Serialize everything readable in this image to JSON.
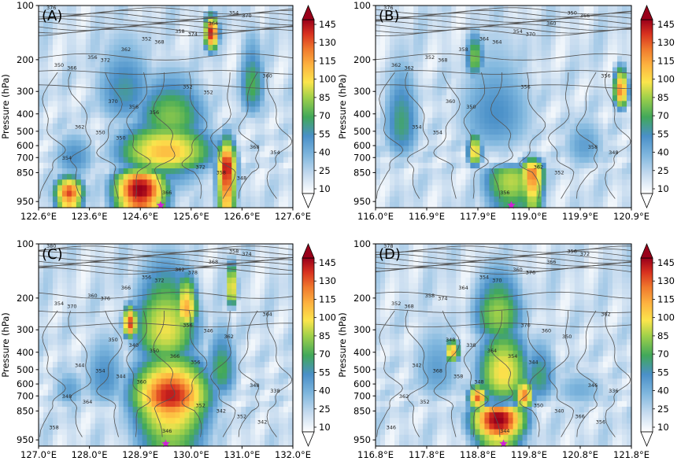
{
  "chart_data": [
    {
      "type": "heatmap",
      "panel_label": "(A)",
      "ylabel": "Pressure (hPa)",
      "y_ticks": [
        "100",
        "200",
        "300",
        "400",
        "500",
        "600",
        "700",
        "850",
        "950"
      ],
      "y_values": [
        100,
        200,
        300,
        400,
        500,
        600,
        700,
        850,
        950
      ],
      "x_ticks": [
        "122.6°E",
        "123.6°E",
        "124.6°E",
        "125.6°E",
        "126.6°E",
        "127.6°E"
      ],
      "xlim": [
        122.6,
        127.6
      ],
      "star_lon": 125.0,
      "colorbar_ticks": [
        "145",
        "130",
        "115",
        "100",
        "85",
        "70",
        "55",
        "40",
        "25",
        "10"
      ],
      "contour_labels": [
        "376",
        "374",
        "372",
        "370",
        "368",
        "366",
        "364",
        "362",
        "360",
        "358",
        "356",
        "354",
        "352",
        "350",
        "372",
        "370",
        "368",
        "366",
        "362",
        "358",
        "356",
        "354",
        "352",
        "350",
        "348",
        "356",
        "354",
        "352",
        "350"
      ],
      "cores": [
        {
          "lon": 125.1,
          "p": 650,
          "v": 105,
          "wx": 1.0,
          "wp": 230
        },
        {
          "lon": 124.6,
          "p": 910,
          "v": 150,
          "wx": 0.55,
          "wp": 90
        },
        {
          "lon": 126.3,
          "p": 800,
          "v": 145,
          "wx": 0.2,
          "wp": 260
        },
        {
          "lon": 125.2,
          "p": 420,
          "v": 70,
          "wx": 0.8,
          "wp": 200
        },
        {
          "lon": 126.0,
          "p": 150,
          "v": 140,
          "wx": 0.15,
          "wp": 35
        },
        {
          "lon": 124.3,
          "p": 300,
          "v": 50,
          "wx": 0.7,
          "wp": 180
        },
        {
          "lon": 123.3,
          "p": 700,
          "v": 45,
          "wx": 0.5,
          "wp": 250
        },
        {
          "lon": 126.8,
          "p": 280,
          "v": 60,
          "wx": 0.3,
          "wp": 150
        },
        {
          "lon": 123.2,
          "p": 920,
          "v": 130,
          "wx": 0.3,
          "wp": 60
        }
      ]
    },
    {
      "type": "heatmap",
      "panel_label": "(B)",
      "ylabel": "Pressure (hPa)",
      "y_ticks": [
        "100",
        "200",
        "300",
        "400",
        "500",
        "600",
        "700",
        "850",
        "950"
      ],
      "y_values": [
        100,
        200,
        300,
        400,
        500,
        600,
        700,
        850,
        950
      ],
      "x_ticks": [
        "116.0°E",
        "116.9°E",
        "117.9°E",
        "119.0°E",
        "119.9°E",
        "120.9°E"
      ],
      "xlim": [
        116.0,
        120.9
      ],
      "star_lon": 118.6,
      "colorbar_ticks": [
        "145",
        "130",
        "115",
        "100",
        "85",
        "70",
        "55",
        "40",
        "25",
        "10"
      ],
      "contour_labels": [
        "376",
        "370",
        "368",
        "366",
        "364",
        "362",
        "360",
        "358",
        "356",
        "354",
        "352",
        "350",
        "364",
        "362",
        "362",
        "360",
        "358",
        "356",
        "354",
        "352",
        "350",
        "348",
        "356",
        "354"
      ],
      "cores": [
        {
          "lon": 118.6,
          "p": 880,
          "v": 80,
          "wx": 0.6,
          "wp": 120
        },
        {
          "lon": 119.0,
          "p": 850,
          "v": 120,
          "wx": 0.25,
          "wp": 150
        },
        {
          "lon": 117.9,
          "p": 650,
          "v": 100,
          "wx": 0.15,
          "wp": 150
        },
        {
          "lon": 120.7,
          "p": 300,
          "v": 120,
          "wx": 0.15,
          "wp": 80
        },
        {
          "lon": 118.3,
          "p": 400,
          "v": 45,
          "wx": 0.9,
          "wp": 300
        },
        {
          "lon": 116.5,
          "p": 450,
          "v": 55,
          "wx": 0.4,
          "wp": 300
        },
        {
          "lon": 117.9,
          "p": 200,
          "v": 70,
          "wx": 0.2,
          "wp": 60
        },
        {
          "lon": 120.0,
          "p": 600,
          "v": 40,
          "wx": 0.5,
          "wp": 250
        }
      ]
    },
    {
      "type": "heatmap",
      "panel_label": "(C)",
      "ylabel": "Pressure (hPa)",
      "y_ticks": [
        "100",
        "200",
        "300",
        "400",
        "500",
        "600",
        "700",
        "850",
        "950"
      ],
      "y_values": [
        100,
        200,
        300,
        400,
        500,
        600,
        700,
        850,
        950
      ],
      "x_ticks": [
        "127.0°E",
        "128.0°E",
        "128.9°E",
        "130.0°E",
        "131.0°E",
        "132.0°E"
      ],
      "xlim": [
        127.0,
        132.0
      ],
      "star_lon": 129.5,
      "colorbar_ticks": [
        "145",
        "130",
        "115",
        "100",
        "85",
        "70",
        "55",
        "40",
        "25",
        "10"
      ],
      "contour_labels": [
        "380",
        "378",
        "376",
        "374",
        "372",
        "370",
        "368",
        "366",
        "364",
        "362",
        "360",
        "358",
        "356",
        "354",
        "352",
        "350",
        "348",
        "346",
        "344",
        "342",
        "340",
        "338",
        "356",
        "354",
        "352",
        "350",
        "348",
        "346",
        "344",
        "342",
        "366",
        "364",
        "362",
        "360",
        "358",
        "356"
      ],
      "cores": [
        {
          "lon": 129.6,
          "p": 700,
          "v": 140,
          "wx": 0.8,
          "wp": 300
        },
        {
          "lon": 129.5,
          "p": 300,
          "v": 90,
          "wx": 0.7,
          "wp": 180
        },
        {
          "lon": 129.9,
          "p": 230,
          "v": 110,
          "wx": 0.25,
          "wp": 80
        },
        {
          "lon": 128.8,
          "p": 280,
          "v": 130,
          "wx": 0.15,
          "wp": 60
        },
        {
          "lon": 130.6,
          "p": 500,
          "v": 60,
          "wx": 0.35,
          "wp": 250
        },
        {
          "lon": 128.3,
          "p": 550,
          "v": 45,
          "wx": 0.5,
          "wp": 300
        },
        {
          "lon": 127.6,
          "p": 650,
          "v": 40,
          "wx": 0.4,
          "wp": 200
        },
        {
          "lon": 130.8,
          "p": 180,
          "v": 100,
          "wx": 0.12,
          "wp": 50
        }
      ]
    },
    {
      "type": "heatmap",
      "panel_label": "(D)",
      "ylabel": "Pressure (hPa)",
      "y_ticks": [
        "100",
        "200",
        "300",
        "400",
        "500",
        "600",
        "700",
        "850",
        "950"
      ],
      "y_values": [
        100,
        200,
        300,
        400,
        500,
        600,
        700,
        850,
        950
      ],
      "x_ticks": [
        "116.8°E",
        "117.8°E",
        "118.8°E",
        "119.8°E",
        "120.8°E",
        "121.8°E"
      ],
      "xlim": [
        116.8,
        121.8
      ],
      "star_lon": 119.3,
      "colorbar_ticks": [
        "145",
        "130",
        "115",
        "100",
        "85",
        "70",
        "55",
        "40",
        "25",
        "10"
      ],
      "contour_labels": [
        "378",
        "376",
        "374",
        "372",
        "370",
        "368",
        "366",
        "364",
        "362",
        "360",
        "358",
        "356",
        "354",
        "352",
        "350",
        "348",
        "346",
        "344",
        "342",
        "340",
        "338",
        "336",
        "370",
        "368",
        "366",
        "364",
        "362",
        "360",
        "358",
        "356",
        "354",
        "352",
        "350",
        "348",
        "346",
        "344"
      ],
      "cores": [
        {
          "lon": 119.2,
          "p": 880,
          "v": 150,
          "wx": 0.55,
          "wp": 90
        },
        {
          "lon": 119.3,
          "p": 520,
          "v": 95,
          "wx": 0.55,
          "wp": 260
        },
        {
          "lon": 119.2,
          "p": 250,
          "v": 75,
          "wx": 0.55,
          "wp": 120
        },
        {
          "lon": 118.8,
          "p": 720,
          "v": 125,
          "wx": 0.2,
          "wp": 120
        },
        {
          "lon": 119.7,
          "p": 700,
          "v": 120,
          "wx": 0.2,
          "wp": 150
        },
        {
          "lon": 118.3,
          "p": 400,
          "v": 110,
          "wx": 0.15,
          "wp": 60
        },
        {
          "lon": 120.0,
          "p": 550,
          "v": 55,
          "wx": 0.4,
          "wp": 250
        },
        {
          "lon": 118.0,
          "p": 500,
          "v": 40,
          "wx": 0.6,
          "wp": 300
        },
        {
          "lon": 120.8,
          "p": 650,
          "v": 35,
          "wx": 0.7,
          "wp": 200
        }
      ]
    }
  ]
}
